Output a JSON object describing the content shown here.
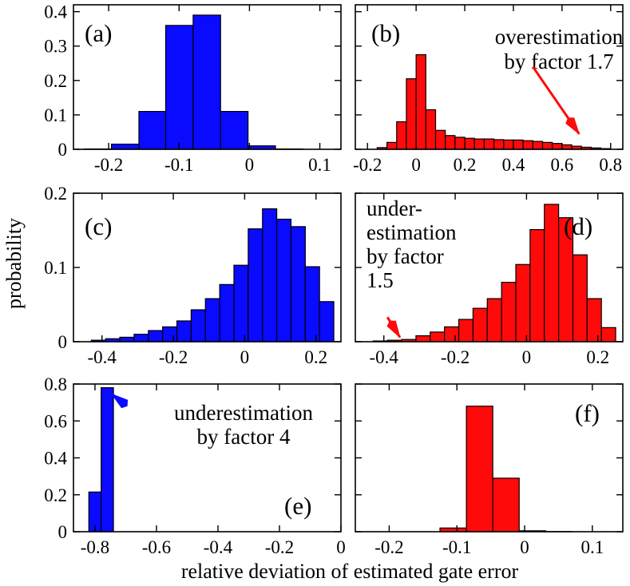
{
  "figure": {
    "ylabel": "probability",
    "xlabel": "relative deviation of estimated gate error"
  },
  "colors": {
    "blue": "#0a0aff",
    "red": "#ff0a0a",
    "edge": "#000000"
  },
  "chart_data": [
    {
      "panel": "a",
      "type": "bar",
      "label": "(a)",
      "color": "blue",
      "xlim": [
        -0.25,
        0.13
      ],
      "ylim": [
        0,
        0.42
      ],
      "xticks": [
        -0.2,
        -0.1,
        0,
        0.1
      ],
      "xtick_labels": [
        "-0.2",
        "-0.1",
        "0",
        "0.1"
      ],
      "yticks": [
        0,
        0.1,
        0.2,
        0.3,
        0.4
      ],
      "ytick_labels": [
        "0",
        "0.1",
        "0.2",
        "0.3",
        "0.4"
      ],
      "bin_edges": [
        -0.235,
        -0.196,
        -0.157,
        -0.119,
        -0.08,
        -0.041,
        -0.002,
        0.037,
        0.076,
        0.115
      ],
      "values": [
        0.001,
        0.015,
        0.11,
        0.36,
        0.39,
        0.11,
        0.01,
        0.001,
        0
      ],
      "annotations": []
    },
    {
      "panel": "b",
      "type": "bar",
      "label": "(b)",
      "color": "red",
      "xlim": [
        -0.25,
        0.85
      ],
      "ylim": [
        0,
        0.42
      ],
      "xticks": [
        -0.2,
        0,
        0.2,
        0.4,
        0.6,
        0.8
      ],
      "xtick_labels": [
        "-0.2",
        "0",
        "0.2",
        "0.4",
        "0.6",
        "0.8"
      ],
      "yticks": [
        0,
        0.1,
        0.2,
        0.3,
        0.4
      ],
      "ytick_labels": [],
      "bin_edges": [
        -0.16,
        -0.12,
        -0.08,
        -0.04,
        0,
        0.04,
        0.08,
        0.12,
        0.16,
        0.2,
        0.24,
        0.28,
        0.32,
        0.36,
        0.4,
        0.44,
        0.48,
        0.52,
        0.56,
        0.6,
        0.64,
        0.68,
        0.72,
        0.76,
        0.8
      ],
      "values": [
        0.005,
        0.02,
        0.08,
        0.205,
        0.275,
        0.115,
        0.055,
        0.04,
        0.035,
        0.032,
        0.03,
        0.03,
        0.028,
        0.027,
        0.027,
        0.025,
        0.023,
        0.02,
        0.017,
        0.013,
        0.009,
        0.006,
        0.004,
        0.002
      ],
      "annotations": [
        {
          "lines": [
            "overestimation",
            "by factor 1.7"
          ],
          "arrow_from": [
            0.48,
            0.24
          ],
          "arrow_to": [
            0.67,
            0.045
          ],
          "color": "red"
        }
      ]
    },
    {
      "panel": "c",
      "type": "bar",
      "label": "(c)",
      "color": "blue",
      "xlim": [
        -0.48,
        0.27
      ],
      "ylim": [
        0,
        0.2
      ],
      "xticks": [
        -0.4,
        -0.2,
        0,
        0.2
      ],
      "xtick_labels": [
        "-0.4",
        "-0.2",
        "0",
        "0.2"
      ],
      "yticks": [
        0,
        0.1,
        0.2
      ],
      "ytick_labels": [
        "0",
        "0.1",
        "0.2"
      ],
      "bin_edges": [
        -0.43,
        -0.39,
        -0.35,
        -0.31,
        -0.27,
        -0.23,
        -0.19,
        -0.15,
        -0.11,
        -0.07,
        -0.03,
        0.01,
        0.05,
        0.09,
        0.13,
        0.17,
        0.21,
        0.25
      ],
      "values": [
        0.002,
        0.004,
        0.006,
        0.01,
        0.015,
        0.02,
        0.028,
        0.043,
        0.058,
        0.077,
        0.103,
        0.152,
        0.179,
        0.165,
        0.155,
        0.101,
        0.054,
        0.016
      ],
      "annotations": []
    },
    {
      "panel": "d",
      "type": "bar",
      "label": "(d)",
      "color": "red",
      "xlim": [
        -0.48,
        0.27
      ],
      "ylim": [
        0,
        0.2
      ],
      "xticks": [
        -0.4,
        -0.2,
        0,
        0.2
      ],
      "xtick_labels": [
        "-0.4",
        "-0.2",
        "0",
        "0.2"
      ],
      "yticks": [
        0,
        0.1,
        0.2
      ],
      "ytick_labels": [],
      "bin_edges": [
        -0.43,
        -0.39,
        -0.35,
        -0.31,
        -0.27,
        -0.23,
        -0.19,
        -0.15,
        -0.11,
        -0.07,
        -0.03,
        0.01,
        0.05,
        0.09,
        0.13,
        0.17,
        0.21,
        0.25
      ],
      "values": [
        0.001,
        0.002,
        0.003,
        0.008,
        0.013,
        0.02,
        0.03,
        0.045,
        0.058,
        0.08,
        0.104,
        0.151,
        0.185,
        0.167,
        0.117,
        0.058,
        0.019,
        0.003
      ],
      "annotations": [
        {
          "lines": [
            "under-",
            "estimation",
            "by factor",
            "1.5"
          ],
          "arrow_from": [
            -0.39,
            0.033
          ],
          "arrow_to": [
            -0.355,
            0.006
          ],
          "color": "red"
        }
      ]
    },
    {
      "panel": "e",
      "type": "bar",
      "label": "(e)",
      "color": "blue",
      "xlim": [
        -0.87,
        0
      ],
      "ylim": [
        0,
        0.8
      ],
      "xticks": [
        -0.8,
        -0.6,
        -0.4,
        -0.2,
        0
      ],
      "xtick_labels": [
        "-0.8",
        "-0.6",
        "-0.4",
        "-0.2",
        "0"
      ],
      "yticks": [
        0,
        0.2,
        0.4,
        0.6,
        0.8
      ],
      "ytick_labels": [
        "0",
        "0.2",
        "0.4",
        "0.6",
        "0.8"
      ],
      "bin_edges": [
        -0.82,
        -0.78,
        -0.74
      ],
      "values": [
        0.215,
        0.78
      ],
      "annotations": [
        {
          "lines": [
            "underestimation",
            "by factor 4"
          ],
          "arrow_from": [
            -0.71,
            0.7
          ],
          "arrow_to": [
            -0.745,
            0.745
          ],
          "color": "blue"
        }
      ]
    },
    {
      "panel": "f",
      "type": "bar",
      "label": "(f)",
      "color": "red",
      "xlim": [
        -0.25,
        0.145
      ],
      "ylim": [
        0,
        0.8
      ],
      "xticks": [
        -0.2,
        -0.1,
        0,
        0.1
      ],
      "xtick_labels": [
        "-0.2",
        "-0.1",
        "0",
        "0.1"
      ],
      "yticks": [
        0,
        0.2,
        0.4,
        0.6,
        0.8
      ],
      "ytick_labels": [],
      "bin_edges": [
        -0.125,
        -0.086,
        -0.047,
        -0.008,
        0.031,
        0.07
      ],
      "values": [
        0.02,
        0.68,
        0.29,
        0.005,
        0.001
      ],
      "annotations": []
    }
  ]
}
